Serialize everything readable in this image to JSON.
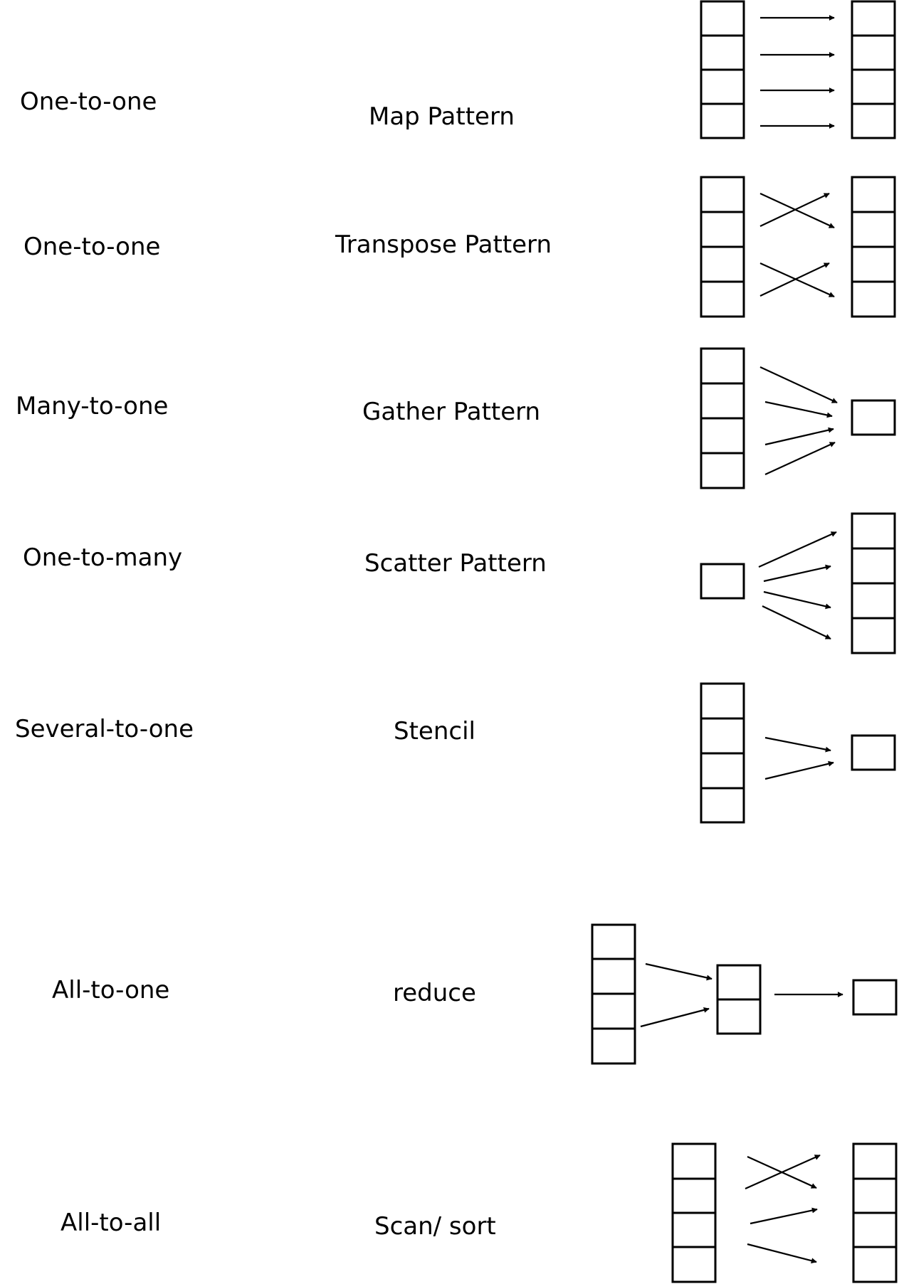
{
  "rows": [
    {
      "relation": "One-to-one",
      "pattern": "Map Pattern"
    },
    {
      "relation": "One-to-one",
      "pattern": "Transpose Pattern"
    },
    {
      "relation": "Many-to-one",
      "pattern": "Gather Pattern"
    },
    {
      "relation": "One-to-many",
      "pattern": "Scatter Pattern"
    },
    {
      "relation": "Several-to-one",
      "pattern": "Stencil"
    },
    {
      "relation": "All-to-one",
      "pattern": "reduce"
    },
    {
      "relation": "All-to-all",
      "pattern": "Scan/ sort"
    }
  ]
}
